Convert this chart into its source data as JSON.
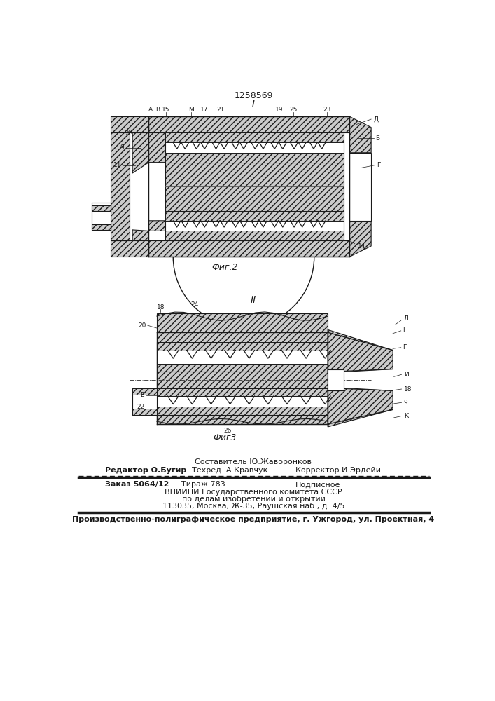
{
  "patent_number": "1258569",
  "fig2_label": "I",
  "fig3_label": "II",
  "fig2_caption": "Фиг.2",
  "fig3_caption": "Фиг3",
  "bg_color": "#ffffff",
  "line_color": "#1a1a1a",
  "footer_sestavitel": "Составитель Ю.Жаворонков",
  "footer_redaktor": "Редактор О.Бугир",
  "footer_tehred": "Техред  А.Кравчук",
  "footer_korrektor": "Корректор И.Эрдейи",
  "footer_zakaz": "Заказ 5064/12",
  "footer_tirazh": "Тираж 783",
  "footer_podpisnoe": "Подписное",
  "footer_vniipи": "ВНИИПИ Государственного комитета СССР",
  "footer_po_delam": "по делам изобретений и открытий",
  "footer_address": "113035, Москва, Ж-35, Раушская наб., д. 4/5",
  "footer_bottom": "Производственно-полиграфическое предприятие, г. Ужгород, ул. Проектная, 4"
}
